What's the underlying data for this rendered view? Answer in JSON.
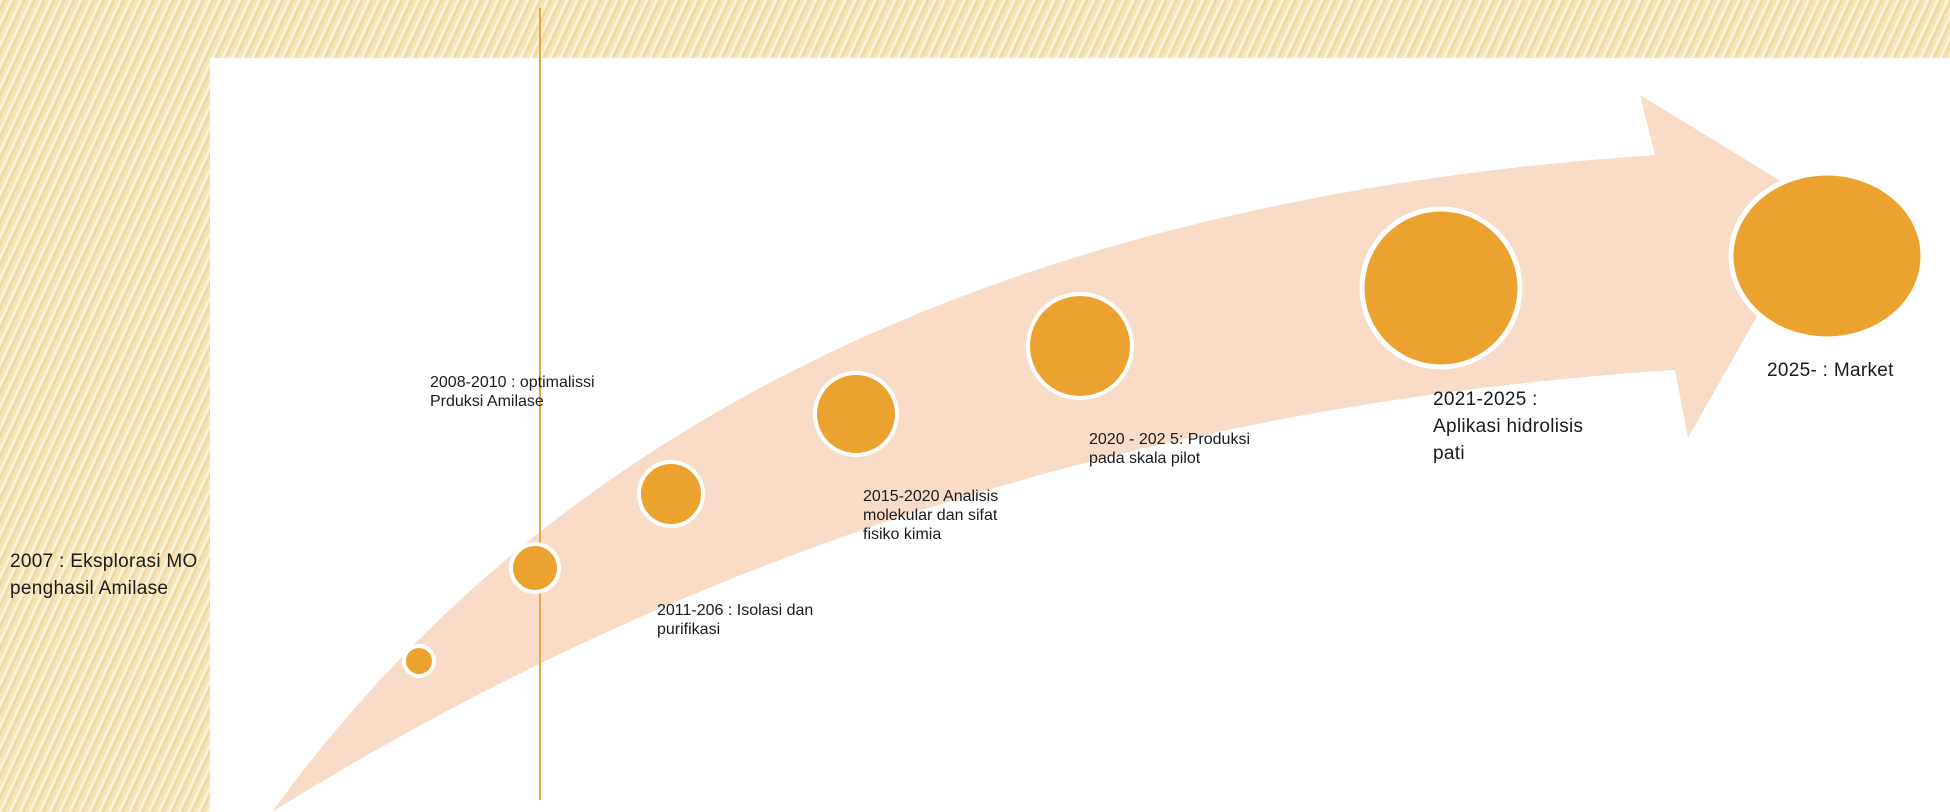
{
  "milestones": [
    {
      "label": "2007 : Eksplorasi MO\npenghasil Amilase"
    },
    {
      "label": "2008-2010 : optimalissi\nPrduksi Amilase"
    },
    {
      "label": "2011-206 : Isolasi dan\npurifikasi"
    },
    {
      "label": "2015-2020 Analisis\nmolekular dan sifat\nfisiko kimia"
    },
    {
      "label": "2020 - 202 5: Produksi\npada skala pilot"
    },
    {
      "label": "2021-2025 :\nAplikasi  hidrolisis\npati"
    },
    {
      "label": "2025- : Market"
    }
  ],
  "colors": {
    "arrow_fill": "#f8dcc7",
    "circle_fill": "#eca22f",
    "circle_stroke": "#ffffff",
    "vertical_line": "#e8a546",
    "background": "#f7e7b8"
  }
}
